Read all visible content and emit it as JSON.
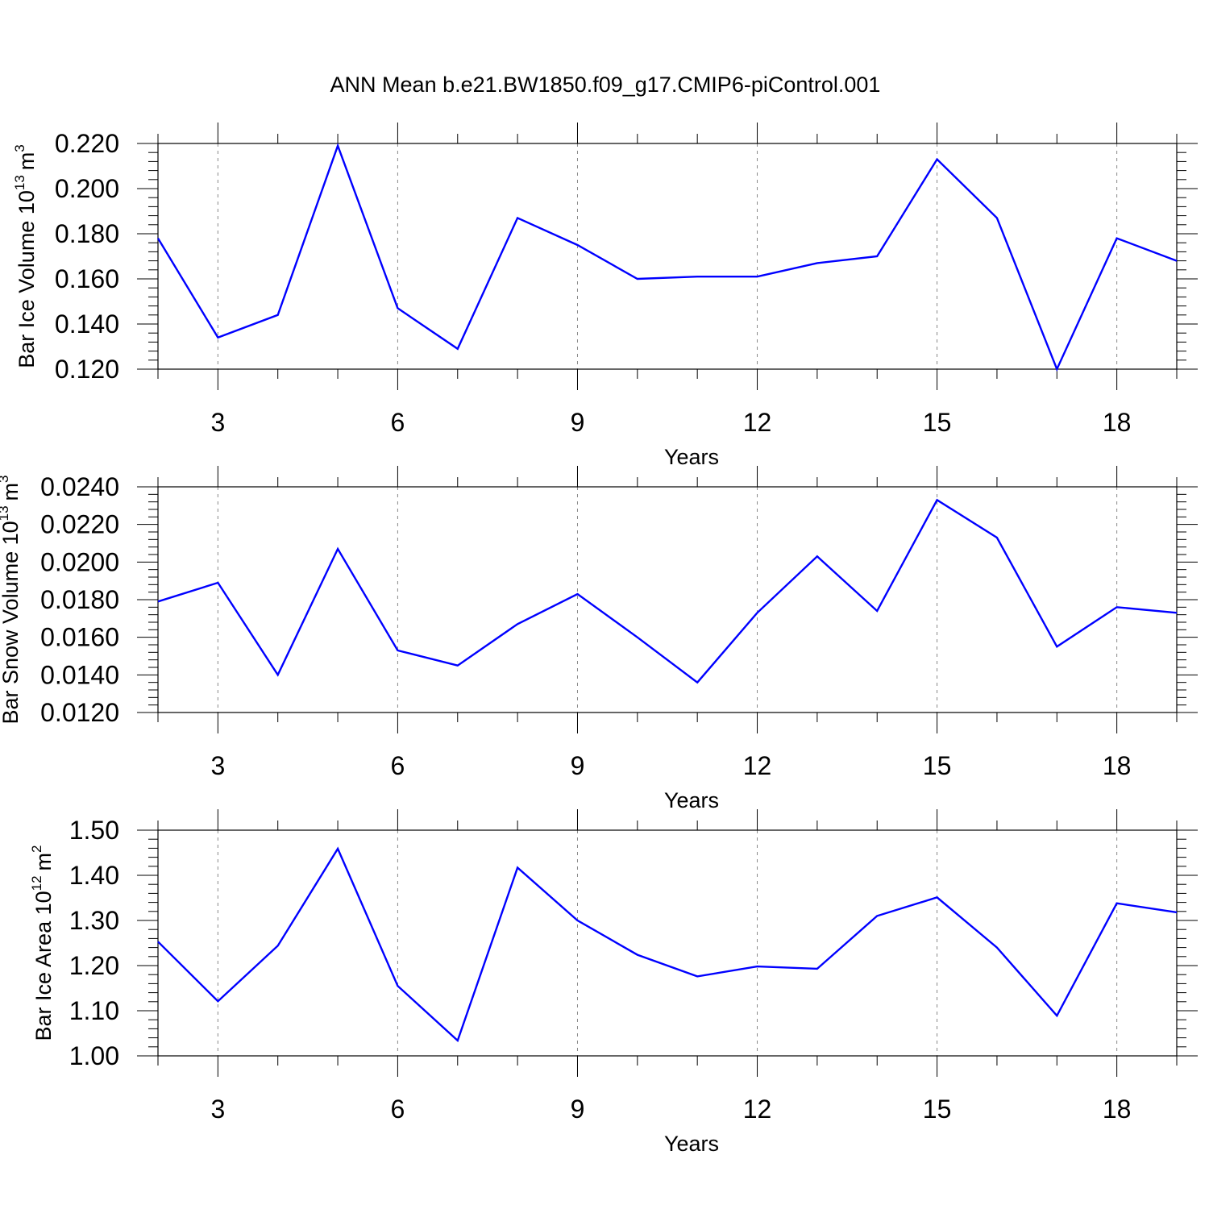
{
  "figure": {
    "title": "ANN Mean b.e21.BW1850.f09_g17.CMIP6-piControl.001",
    "line_color": "#0000ff",
    "grid_color": "#888888",
    "axis_color": "#000000"
  },
  "chart_data": [
    {
      "type": "line",
      "ylabel": {
        "text": "Bar Ice Volume 10",
        "exponent": "13",
        "unit": "m",
        "unit_exponent": "3"
      },
      "xlabel": "Years",
      "xlim": [
        2,
        19
      ],
      "ylim": [
        0.12,
        0.22
      ],
      "x_ticks": [
        3,
        6,
        9,
        12,
        15,
        18
      ],
      "x_tick_labels": [
        "3",
        "6",
        "9",
        "12",
        "15",
        "18"
      ],
      "y_ticks": [
        0.12,
        0.14,
        0.16,
        0.18,
        0.2,
        0.22
      ],
      "y_tick_labels": [
        "0.120",
        "0.140",
        "0.160",
        "0.180",
        "0.200",
        "0.220"
      ],
      "grid": "vertical dashed at major x ticks",
      "x": [
        2,
        3,
        4,
        5,
        6,
        7,
        8,
        9,
        10,
        11,
        12,
        13,
        14,
        15,
        16,
        17,
        18,
        19
      ],
      "values": [
        0.178,
        0.134,
        0.144,
        0.219,
        0.147,
        0.129,
        0.187,
        0.175,
        0.16,
        0.161,
        0.161,
        0.167,
        0.17,
        0.213,
        0.187,
        0.12,
        0.178,
        0.168
      ]
    },
    {
      "type": "line",
      "ylabel": {
        "text": "Bar Snow Volume 10",
        "exponent": "13",
        "unit": "m",
        "unit_exponent": "3"
      },
      "xlabel": "Years",
      "xlim": [
        2,
        19
      ],
      "ylim": [
        0.012,
        0.024
      ],
      "x_ticks": [
        3,
        6,
        9,
        12,
        15,
        18
      ],
      "x_tick_labels": [
        "3",
        "6",
        "9",
        "12",
        "15",
        "18"
      ],
      "y_ticks": [
        0.012,
        0.014,
        0.016,
        0.018,
        0.02,
        0.022,
        0.024
      ],
      "y_tick_labels": [
        "0.0120",
        "0.0140",
        "0.0160",
        "0.0180",
        "0.0200",
        "0.0220",
        "0.0240"
      ],
      "grid": "vertical dashed at major x ticks",
      "x": [
        2,
        3,
        4,
        5,
        6,
        7,
        8,
        9,
        10,
        11,
        12,
        13,
        14,
        15,
        16,
        17,
        18,
        19
      ],
      "values": [
        0.0179,
        0.0189,
        0.014,
        0.0207,
        0.0153,
        0.0145,
        0.0167,
        0.0183,
        0.016,
        0.0136,
        0.0173,
        0.0203,
        0.0174,
        0.0233,
        0.0213,
        0.0155,
        0.0176,
        0.0173
      ]
    },
    {
      "type": "line",
      "ylabel": {
        "text": "Bar Ice Area 10",
        "exponent": "12",
        "unit": "m",
        "unit_exponent": "2"
      },
      "xlabel": "Years",
      "xlim": [
        2,
        19
      ],
      "ylim": [
        1.0,
        1.5
      ],
      "x_ticks": [
        3,
        6,
        9,
        12,
        15,
        18
      ],
      "x_tick_labels": [
        "3",
        "6",
        "9",
        "12",
        "15",
        "18"
      ],
      "y_ticks": [
        1.0,
        1.1,
        1.2,
        1.3,
        1.4,
        1.5
      ],
      "y_tick_labels": [
        "1.00",
        "1.10",
        "1.20",
        "1.30",
        "1.40",
        "1.50"
      ],
      "grid": "vertical dashed at major x ticks",
      "x": [
        2,
        3,
        4,
        5,
        6,
        7,
        8,
        9,
        10,
        11,
        12,
        13,
        14,
        15,
        16,
        17,
        18,
        19
      ],
      "values": [
        1.253,
        1.121,
        1.244,
        1.459,
        1.155,
        1.034,
        1.417,
        1.3,
        1.224,
        1.176,
        1.198,
        1.193,
        1.31,
        1.351,
        1.24,
        1.089,
        1.338,
        1.318
      ]
    }
  ]
}
